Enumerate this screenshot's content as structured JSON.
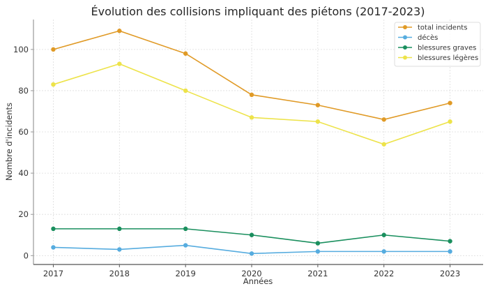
{
  "chart_data": {
    "type": "line",
    "title": "Évolution des collisions impliquant des piétons (2017-2023)",
    "xlabel": "Années",
    "ylabel": "Nombre d'incidents",
    "x": [
      2017,
      2018,
      2019,
      2020,
      2021,
      2022,
      2023
    ],
    "x_tick_labels": [
      "2017",
      "2018",
      "2019",
      "2020",
      "2021",
      "2022",
      "2023"
    ],
    "y_ticks": [
      0,
      20,
      40,
      60,
      80,
      100
    ],
    "y_tick_labels": [
      "0",
      "20",
      "40",
      "60",
      "80",
      "100"
    ],
    "ylim": [
      -4.3,
      114.5
    ],
    "xlim": [
      2016.7,
      2023.5
    ],
    "grid": true,
    "legend_position": "top-right",
    "series": [
      {
        "name": "total incidents",
        "color": "#e09a26",
        "values": [
          100,
          109,
          98,
          78,
          73,
          66,
          74
        ]
      },
      {
        "name": "décès",
        "color": "#56acdf",
        "values": [
          4,
          3,
          5,
          1,
          2,
          2,
          2
        ]
      },
      {
        "name": "blessures graves",
        "color": "#1a8f5e",
        "values": [
          13,
          13,
          13,
          10,
          6,
          10,
          7
        ]
      },
      {
        "name": "blessures légères",
        "color": "#ede34a",
        "values": [
          83,
          93,
          80,
          67,
          65,
          54,
          65
        ]
      }
    ]
  }
}
